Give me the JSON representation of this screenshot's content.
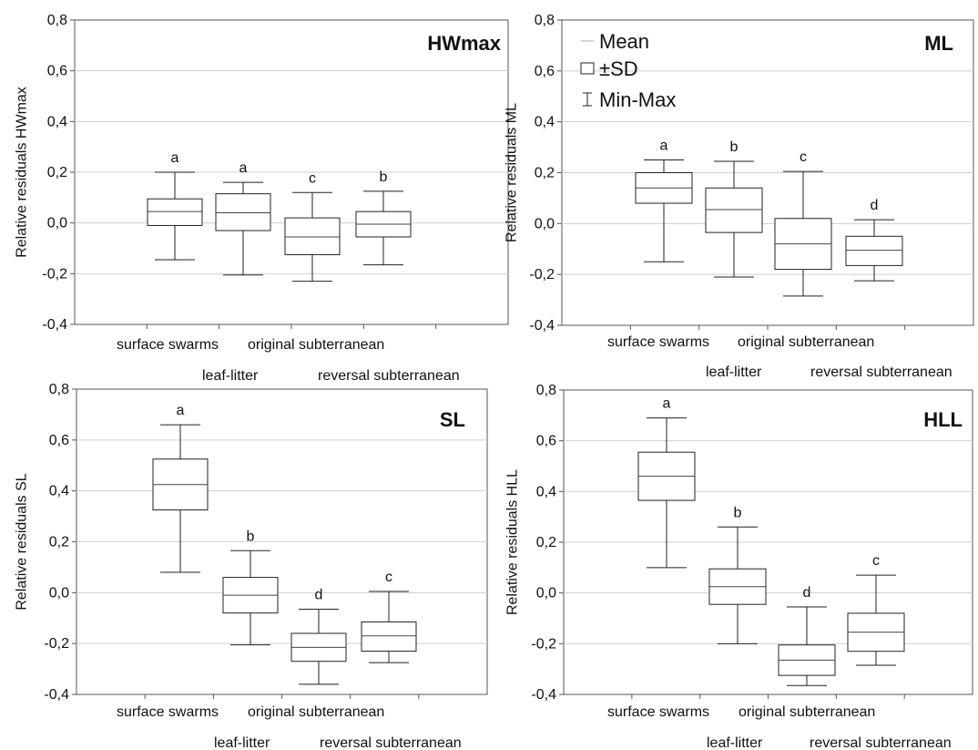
{
  "chart_data": [
    {
      "type": "box",
      "title": "HWmax",
      "ylabel": "Relative residuals HWmax",
      "ylim": [
        -0.4,
        0.8
      ],
      "ytick_labels": [
        "-0,4",
        "-0,2",
        "0,0",
        "0,2",
        "0,4",
        "0,6",
        "0,8"
      ],
      "categories": [
        "surface swarms",
        "leaf-litter",
        "original subterranean",
        "reversal subterranean"
      ],
      "boxes": [
        {
          "min": -0.145,
          "sd_low": -0.01,
          "mean": 0.045,
          "sd_high": 0.095,
          "max": 0.2,
          "letter": "a"
        },
        {
          "min": -0.205,
          "sd_low": -0.03,
          "mean": 0.04,
          "sd_high": 0.115,
          "max": 0.16,
          "letter": "a"
        },
        {
          "min": -0.23,
          "sd_low": -0.125,
          "mean": -0.055,
          "sd_high": 0.02,
          "max": 0.12,
          "letter": "c"
        },
        {
          "min": -0.165,
          "sd_low": -0.055,
          "mean": -0.005,
          "sd_high": 0.045,
          "max": 0.125,
          "letter": "b"
        }
      ]
    },
    {
      "type": "box",
      "title": "ML",
      "ylabel": "Relative residuals ML",
      "ylim": [
        -0.4,
        0.8
      ],
      "ytick_labels": [
        "-0,4",
        "-0,2",
        "0,0",
        "0,2",
        "0,4",
        "0,6",
        "0,8"
      ],
      "categories": [
        "surface swarms",
        "leaf-litter",
        "original subterranean",
        "reversal subterranean"
      ],
      "legend": [
        "Mean",
        "±SD",
        "Min-Max"
      ],
      "boxes": [
        {
          "min": -0.15,
          "sd_low": 0.08,
          "mean": 0.14,
          "sd_high": 0.2,
          "max": 0.25,
          "letter": "a"
        },
        {
          "min": -0.21,
          "sd_low": -0.035,
          "mean": 0.055,
          "sd_high": 0.14,
          "max": 0.245,
          "letter": "b"
        },
        {
          "min": -0.285,
          "sd_low": -0.18,
          "mean": -0.08,
          "sd_high": 0.02,
          "max": 0.205,
          "letter": "c"
        },
        {
          "min": -0.225,
          "sd_low": -0.165,
          "mean": -0.105,
          "sd_high": -0.05,
          "max": 0.015,
          "letter": "d"
        }
      ]
    },
    {
      "type": "box",
      "title": "SL",
      "ylabel": "Relative residuals SL",
      "ylim": [
        -0.4,
        0.8
      ],
      "ytick_labels": [
        "-0,4",
        "-0,2",
        "0,0",
        "0,2",
        "0,4",
        "0,6",
        "0,8"
      ],
      "categories": [
        "surface swarms",
        "leaf-litter",
        "original subterranean",
        "reversal subterranean"
      ],
      "boxes": [
        {
          "min": 0.08,
          "sd_low": 0.325,
          "mean": 0.425,
          "sd_high": 0.525,
          "max": 0.66,
          "letter": "a"
        },
        {
          "min": -0.205,
          "sd_low": -0.08,
          "mean": -0.01,
          "sd_high": 0.06,
          "max": 0.165,
          "letter": "b"
        },
        {
          "min": -0.36,
          "sd_low": -0.27,
          "mean": -0.215,
          "sd_high": -0.16,
          "max": -0.065,
          "letter": "d"
        },
        {
          "min": -0.275,
          "sd_low": -0.23,
          "mean": -0.17,
          "sd_high": -0.115,
          "max": 0.005,
          "letter": "c"
        }
      ]
    },
    {
      "type": "box",
      "title": "HLL",
      "ylabel": "Relative residuals HLL",
      "ylim": [
        -0.4,
        0.8
      ],
      "ytick_labels": [
        "-0,4",
        "-0,2",
        "0,0",
        "0,2",
        "0,4",
        "0,6",
        "0,8"
      ],
      "categories": [
        "surface swarms",
        "leaf-litter",
        "original subterranean",
        "reversal subterranean"
      ],
      "boxes": [
        {
          "min": 0.1,
          "sd_low": 0.365,
          "mean": 0.46,
          "sd_high": 0.555,
          "max": 0.69,
          "letter": "a"
        },
        {
          "min": -0.2,
          "sd_low": -0.045,
          "mean": 0.025,
          "sd_high": 0.095,
          "max": 0.26,
          "letter": "b"
        },
        {
          "min": -0.365,
          "sd_low": -0.325,
          "mean": -0.265,
          "sd_high": -0.205,
          "max": -0.055,
          "letter": "d"
        },
        {
          "min": -0.285,
          "sd_low": -0.23,
          "mean": -0.155,
          "sd_high": -0.08,
          "max": 0.07,
          "letter": "c"
        }
      ]
    }
  ]
}
